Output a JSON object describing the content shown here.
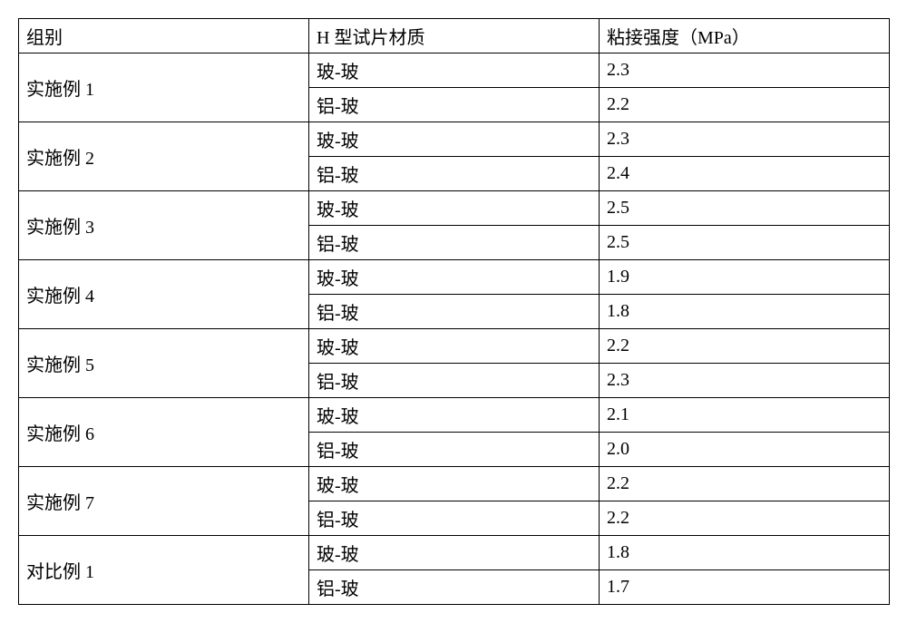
{
  "table": {
    "columns": [
      "组别",
      "H 型试片材质",
      "粘接强度（MPa）"
    ],
    "groups": [
      {
        "name": "实施例 1",
        "rows": [
          {
            "material": "玻-玻",
            "strength": "2.3"
          },
          {
            "material": "铝-玻",
            "strength": "2.2"
          }
        ]
      },
      {
        "name": "实施例 2",
        "rows": [
          {
            "material": "玻-玻",
            "strength": "2.3"
          },
          {
            "material": "铝-玻",
            "strength": "2.4"
          }
        ]
      },
      {
        "name": "实施例 3",
        "rows": [
          {
            "material": "玻-玻",
            "strength": "2.5"
          },
          {
            "material": "铝-玻",
            "strength": "2.5"
          }
        ]
      },
      {
        "name": "实施例 4",
        "rows": [
          {
            "material": "玻-玻",
            "strength": "1.9"
          },
          {
            "material": "铝-玻",
            "strength": "1.8"
          }
        ]
      },
      {
        "name": "实施例 5",
        "rows": [
          {
            "material": "玻-玻",
            "strength": "2.2"
          },
          {
            "material": "铝-玻",
            "strength": "2.3"
          }
        ]
      },
      {
        "name": "实施例 6",
        "rows": [
          {
            "material": "玻-玻",
            "strength": "2.1"
          },
          {
            "material": "铝-玻",
            "strength": "2.0"
          }
        ]
      },
      {
        "name": "实施例 7",
        "rows": [
          {
            "material": "玻-玻",
            "strength": "2.2"
          },
          {
            "material": "铝-玻",
            "strength": "2.2"
          }
        ]
      },
      {
        "name": "对比例 1",
        "rows": [
          {
            "material": "玻-玻",
            "strength": "1.8"
          },
          {
            "material": "铝-玻",
            "strength": "1.7"
          }
        ]
      }
    ],
    "border_color": "#000000",
    "background_color": "#ffffff",
    "text_color": "#000000",
    "font_size_pt": 15
  }
}
